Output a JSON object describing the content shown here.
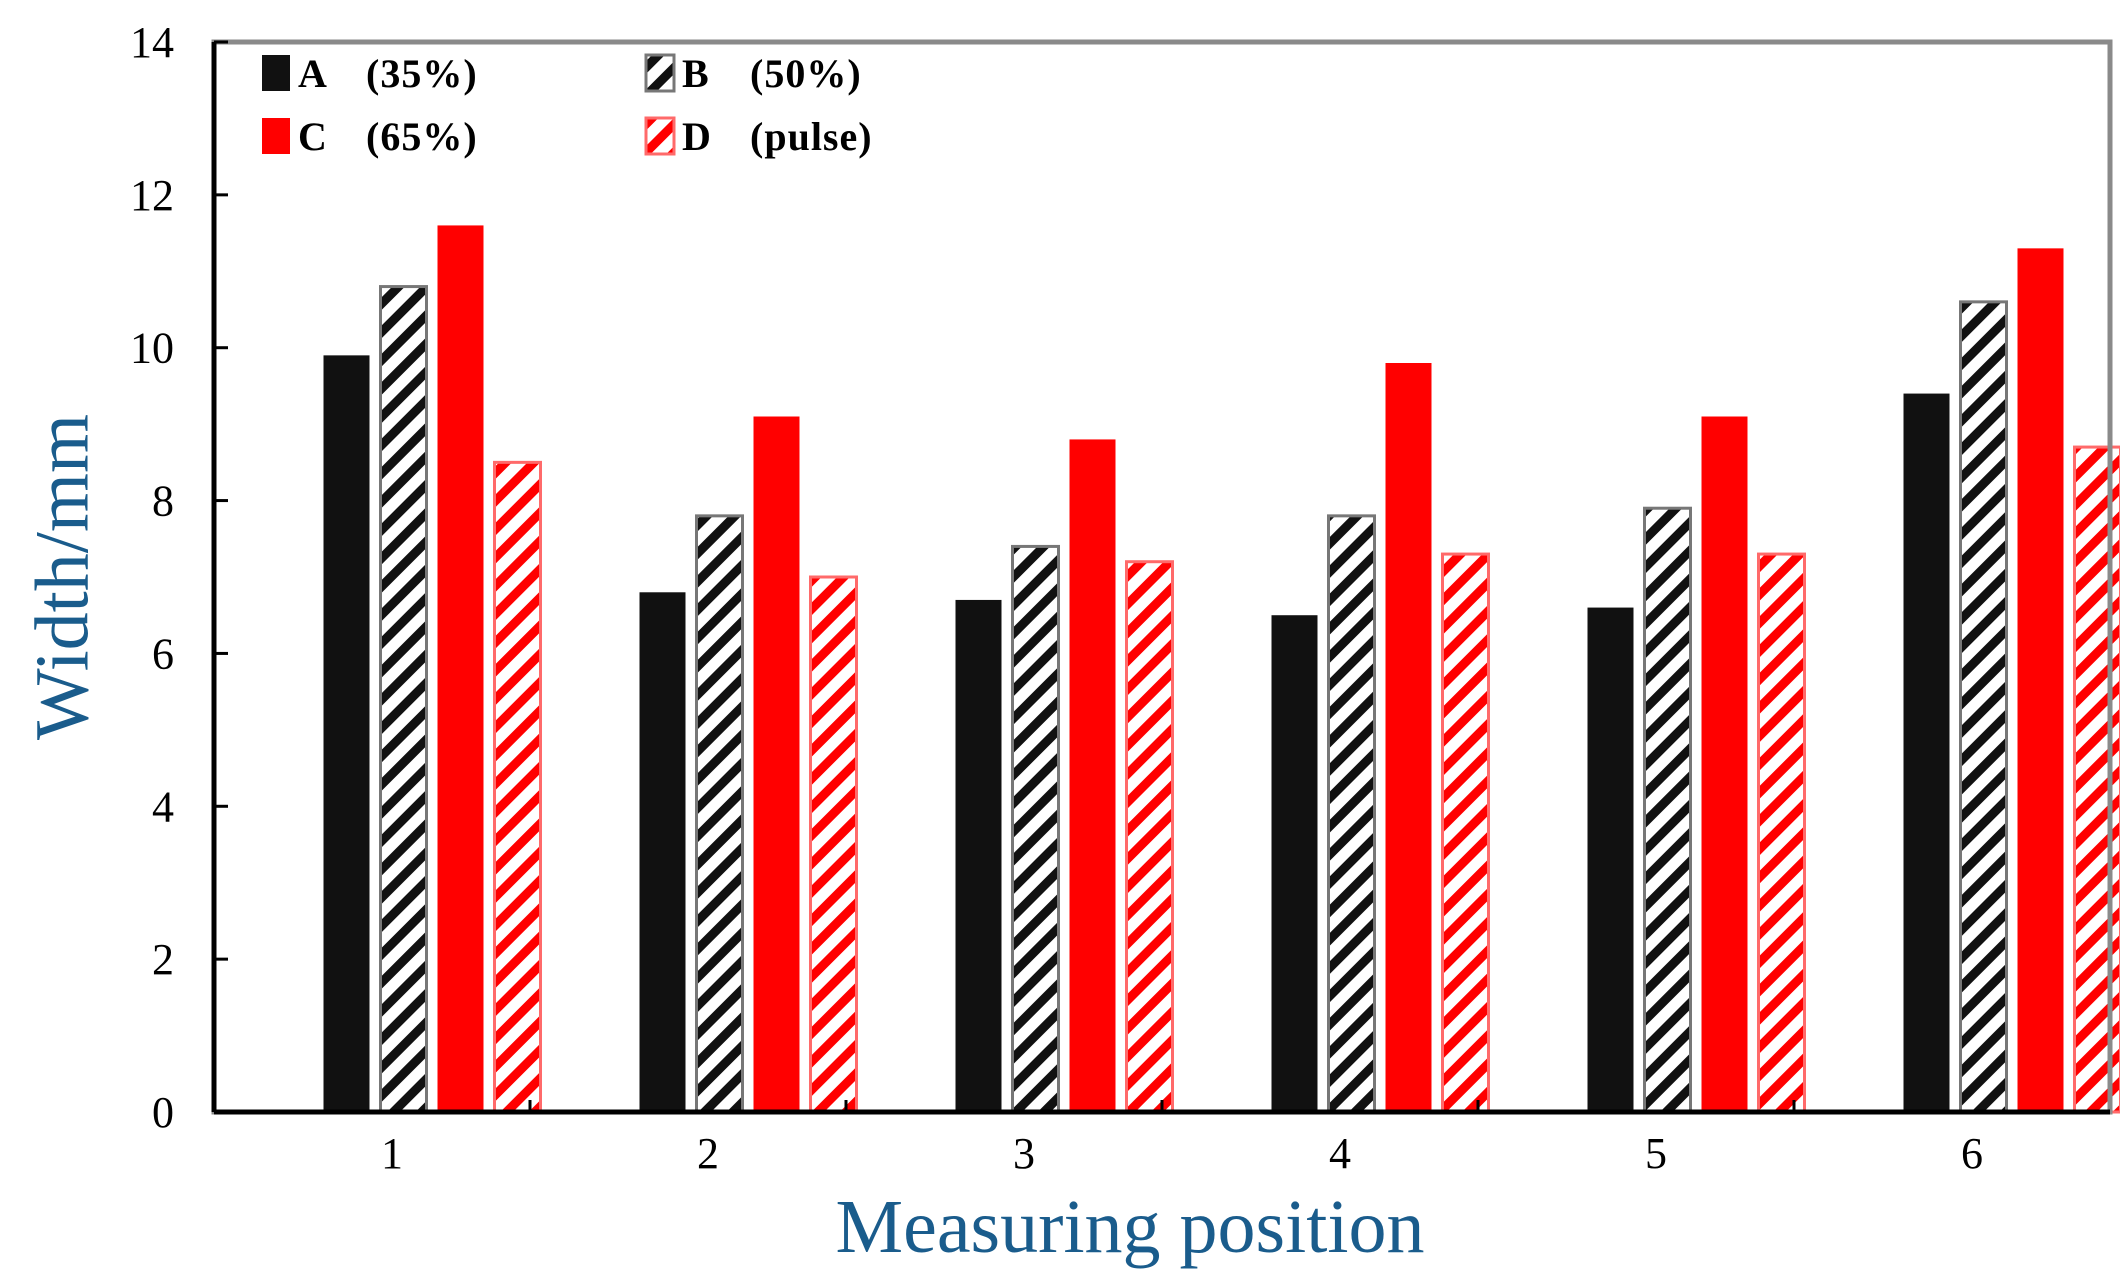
{
  "chart_data": {
    "type": "bar",
    "title": "",
    "xlabel": "Measuring position",
    "ylabel": "Width/mm",
    "ylim": [
      0,
      14
    ],
    "yticks": [
      0,
      2,
      4,
      6,
      8,
      10,
      12,
      14
    ],
    "ytick_labels": [
      "0",
      "2",
      "4",
      "6",
      "8",
      "10",
      "12",
      "14"
    ],
    "categories": [
      "1",
      "2",
      "3",
      "4",
      "5",
      "6"
    ],
    "grid": false,
    "legend_position": "top-left",
    "series": [
      {
        "name": "A (35%)",
        "label_letter": "A",
        "label_note": "(35%)",
        "values": [
          9.9,
          6.8,
          6.7,
          6.5,
          6.6,
          9.4
        ],
        "fill": "#111111",
        "pattern": "solid"
      },
      {
        "name": "B (50%)",
        "label_letter": "B",
        "label_note": "(50%)",
        "values": [
          10.8,
          7.8,
          7.4,
          7.8,
          7.9,
          10.6
        ],
        "fill": "#111111",
        "pattern": "hatch"
      },
      {
        "name": "C (65%)",
        "label_letter": "C",
        "label_note": "(65%)",
        "values": [
          11.6,
          9.1,
          8.8,
          9.8,
          9.1,
          11.3
        ],
        "fill": "#ff0000",
        "pattern": "solid"
      },
      {
        "name": "D (pulse)",
        "label_letter": "D",
        "label_note": "(pulse)",
        "values": [
          8.5,
          7.0,
          7.2,
          7.3,
          7.3,
          8.7
        ],
        "fill": "#ff0000",
        "pattern": "hatch"
      }
    ]
  }
}
